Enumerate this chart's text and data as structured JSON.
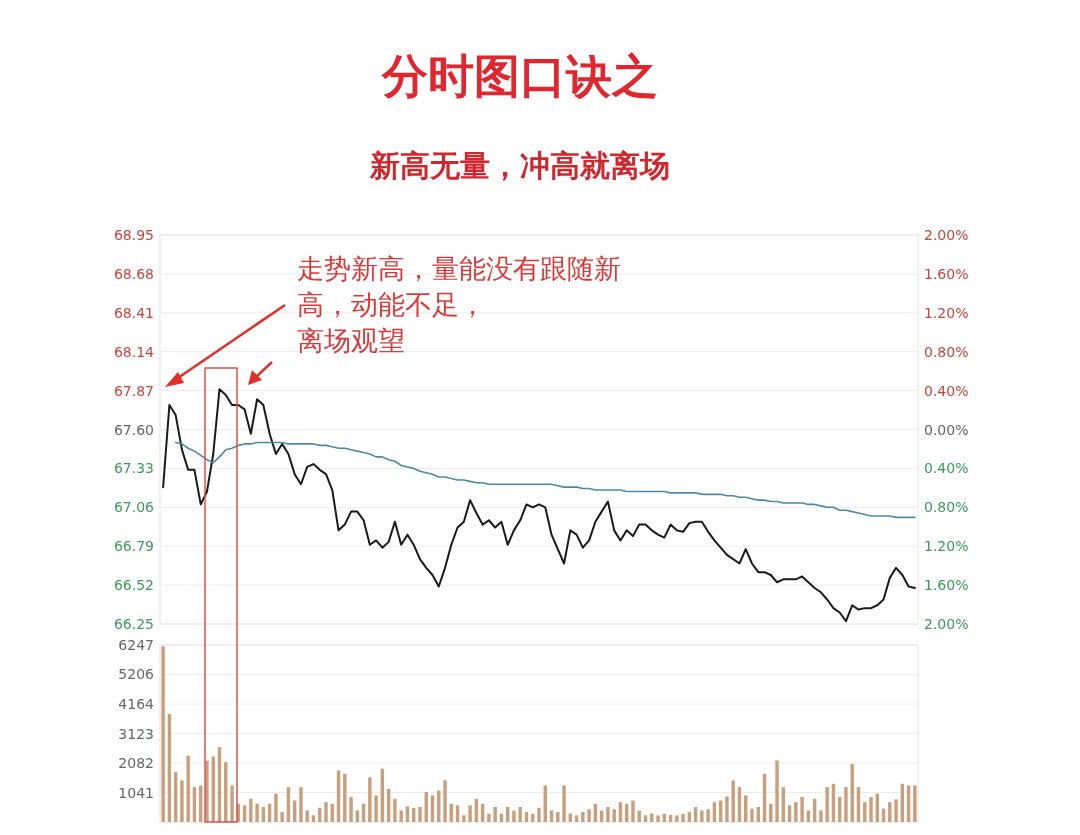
{
  "chart_data": [
    {
      "type": "line",
      "title": "分时图口诀之",
      "subtitle": "新高无量，冲高就离场",
      "annotations": [
        "走势新高，量能没有跟随新",
        "高，动能不足，",
        "离场观望"
      ],
      "categories": [
        null,
        null,
        null,
        null,
        null,
        null,
        null,
        null,
        null,
        null,
        null,
        null,
        null,
        null,
        null,
        null,
        null,
        null,
        null,
        null,
        null,
        null,
        null,
        null,
        null,
        null,
        null,
        null,
        null,
        null,
        null,
        null,
        null,
        null,
        null,
        null,
        null,
        null,
        null,
        null,
        null,
        null,
        null,
        null,
        null,
        null,
        null,
        null,
        null,
        null,
        null,
        null,
        null,
        null,
        null,
        null,
        null,
        null,
        null,
        null,
        null,
        null,
        null,
        null,
        null,
        null,
        null,
        null,
        null,
        null,
        null,
        null,
        null,
        null,
        null,
        null,
        null,
        null,
        null,
        null,
        null,
        null,
        null,
        null,
        null,
        null,
        null,
        null,
        null,
        null,
        null,
        null,
        null,
        null,
        null,
        null,
        null,
        null,
        null,
        null,
        null,
        null,
        null,
        null,
        null,
        null,
        null,
        null,
        null,
        null,
        null,
        null,
        null,
        null,
        null,
        null,
        null,
        null,
        null,
        null,
        null
      ],
      "series": [
        {
          "color": "#1a1a1a",
          "values": [
            67.2,
            67.77,
            67.7,
            67.46,
            67.32,
            67.32,
            67.08,
            67.17,
            67.43,
            67.88,
            67.84,
            67.77,
            67.77,
            67.74,
            67.57,
            67.81,
            67.77,
            67.57,
            67.43,
            67.5,
            67.43,
            67.29,
            67.22,
            67.34,
            67.36,
            67.32,
            67.29,
            67.18,
            66.9,
            66.94,
            67.03,
            67.03,
            66.97,
            66.8,
            66.83,
            66.78,
            66.82,
            66.96,
            66.8,
            66.87,
            66.8,
            66.7,
            66.64,
            66.59,
            66.51,
            66.64,
            66.8,
            66.92,
            66.96,
            67.11,
            67.02,
            66.94,
            66.97,
            66.92,
            66.96,
            66.8,
            66.9,
            66.97,
            67.08,
            67.06,
            67.08,
            67.06,
            66.87,
            66.77,
            66.67,
            66.9,
            66.87,
            66.78,
            66.83,
            66.96,
            67.03,
            67.1,
            66.9,
            66.83,
            66.9,
            66.86,
            66.94,
            66.94,
            66.9,
            66.87,
            66.85,
            66.94,
            66.9,
            66.89,
            66.95,
            66.96,
            66.96,
            66.89,
            66.83,
            66.78,
            66.73,
            66.7,
            66.67,
            66.77,
            66.67,
            66.61,
            66.61,
            66.59,
            66.54,
            66.56,
            66.56,
            66.56,
            66.58,
            66.54,
            66.5,
            66.47,
            66.42,
            66.36,
            66.33,
            66.27,
            66.38,
            66.35,
            66.36,
            66.36,
            66.38,
            66.42,
            66.57,
            66.64,
            66.59,
            66.51,
            66.5
          ]
        },
        {
          "color": "#4f8a9c",
          "values": [
            null,
            null,
            67.51,
            67.5,
            67.47,
            67.45,
            67.42,
            67.39,
            67.37,
            67.41,
            67.46,
            67.47,
            67.49,
            67.5,
            67.5,
            67.51,
            67.51,
            67.51,
            67.51,
            67.51,
            67.5,
            67.5,
            67.5,
            67.5,
            67.5,
            67.49,
            67.49,
            67.48,
            67.47,
            67.47,
            67.46,
            67.45,
            67.44,
            67.43,
            67.41,
            67.41,
            67.39,
            67.38,
            67.35,
            67.34,
            67.33,
            67.31,
            67.3,
            67.29,
            67.27,
            67.27,
            67.26,
            67.25,
            67.25,
            67.24,
            67.23,
            67.23,
            67.22,
            67.22,
            67.22,
            67.22,
            67.22,
            67.22,
            67.22,
            67.22,
            67.22,
            67.22,
            67.22,
            67.21,
            67.2,
            67.2,
            67.2,
            67.19,
            67.19,
            67.18,
            67.18,
            67.18,
            67.18,
            67.18,
            67.17,
            67.17,
            67.17,
            67.17,
            67.17,
            67.17,
            67.17,
            67.16,
            67.16,
            67.16,
            67.16,
            67.16,
            67.15,
            67.15,
            67.15,
            67.15,
            67.14,
            67.14,
            67.13,
            67.13,
            67.12,
            67.11,
            67.11,
            67.1,
            67.1,
            67.09,
            67.09,
            67.09,
            67.09,
            67.08,
            67.08,
            67.07,
            67.06,
            67.06,
            67.04,
            67.04,
            67.03,
            67.02,
            67.01,
            67.0,
            67.0,
            67.0,
            67.0,
            66.99,
            66.99,
            66.99,
            66.99
          ]
        }
      ],
      "ylim": [
        66.25,
        68.95
      ],
      "yticks": [
        66.25,
        66.52,
        66.79,
        67.06,
        67.33,
        {
          "value": 67.6,
          "label": "67.60"
        },
        67.87,
        68.14,
        68.41,
        68.68,
        68.95
      ],
      "y2lim": [
        -2,
        2
      ],
      "y2ticks": [
        {
          "value": -2,
          "label": "2.00%"
        },
        {
          "value": -1.6,
          "label": "1.60%"
        },
        {
          "value": -1.2,
          "label": "1.20%"
        },
        {
          "value": -0.8,
          "label": "0.80%"
        },
        {
          "value": -0.4,
          "label": "0.40%"
        },
        {
          "value": 0,
          "label": "0.00%"
        },
        {
          "value": 0.4,
          "label": "0.40%"
        },
        {
          "value": 0.8,
          "label": "0.80%"
        },
        {
          "value": 1.2,
          "label": "1.20%"
        },
        {
          "value": 1.6,
          "label": "1.60%"
        },
        {
          "value": 2,
          "label": "2.00%"
        }
      ],
      "grid": "y"
    },
    {
      "type": "bar",
      "categories": [
        null,
        null,
        null,
        null,
        null,
        null,
        null,
        null,
        null,
        null,
        null,
        null,
        null,
        null,
        null,
        null,
        null,
        null,
        null,
        null,
        null,
        null,
        null,
        null,
        null,
        null,
        null,
        null,
        null,
        null,
        null,
        null,
        null,
        null,
        null,
        null,
        null,
        null,
        null,
        null,
        null,
        null,
        null,
        null,
        null,
        null,
        null,
        null,
        null,
        null,
        null,
        null,
        null,
        null,
        null,
        null,
        null,
        null,
        null,
        null,
        null,
        null,
        null,
        null,
        null,
        null,
        null,
        null,
        null,
        null,
        null,
        null,
        null,
        null,
        null,
        null,
        null,
        null,
        null,
        null,
        null,
        null,
        null,
        null,
        null,
        null,
        null,
        null,
        null,
        null,
        null,
        null,
        null,
        null,
        null,
        null,
        null,
        null,
        null,
        null,
        null,
        null,
        null,
        null,
        null,
        null,
        null,
        null,
        null,
        null,
        null,
        null,
        null,
        null,
        null,
        null,
        null,
        null,
        null,
        null,
        null
      ],
      "values": [
        6200,
        3810,
        1760,
        1470,
        2340,
        1230,
        1290,
        2170,
        2310,
        2640,
        2110,
        1290,
        645,
        590,
        820,
        645,
        530,
        645,
        1000,
        350,
        1230,
        760,
        1230,
        410,
        235,
        500,
        700,
        645,
        1820,
        1700,
        880,
        410,
        645,
        1580,
        940,
        1880,
        1170,
        820,
        410,
        550,
        500,
        530,
        1060,
        940,
        1110,
        1470,
        645,
        590,
        235,
        590,
        820,
        645,
        290,
        530,
        290,
        530,
        400,
        530,
        350,
        290,
        500,
        1290,
        410,
        350,
        1290,
        300,
        235,
        350,
        450,
        645,
        400,
        530,
        450,
        700,
        645,
        760,
        400,
        235,
        300,
        235,
        290,
        250,
        235,
        290,
        350,
        530,
        410,
        450,
        700,
        760,
        900,
        1470,
        1230,
        940,
        470,
        530,
        1700,
        645,
        2170,
        1230,
        590,
        700,
        880,
        410,
        820,
        410,
        1230,
        1350,
        880,
        1230,
        2050,
        1230,
        700,
        880,
        1000,
        470,
        700,
        800,
        1350,
        1290,
        1290
      ],
      "color": "#c9a07e",
      "ylim": [
        0,
        6247
      ],
      "yticks": [
        1041,
        2082,
        3123,
        4164,
        5206,
        6247
      ],
      "grid": "y"
    }
  ]
}
